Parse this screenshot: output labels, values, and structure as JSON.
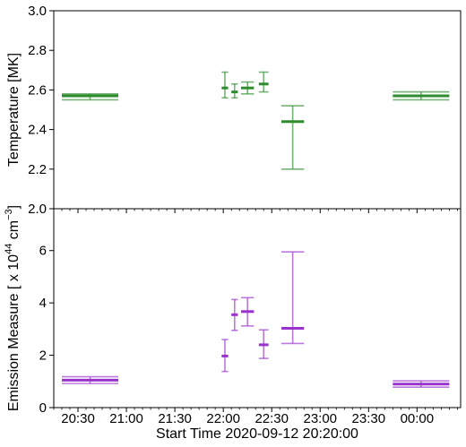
{
  "chart_data": [
    {
      "type": "errorbar",
      "panel": "top",
      "ylabel": "Temperature [MK]",
      "ylim": [
        2.0,
        3.0
      ],
      "yticks": [
        2.0,
        2.2,
        2.4,
        2.6,
        2.8,
        3.0
      ],
      "ytick_labels": [
        "2.0",
        "2.2",
        "2.4",
        "2.6",
        "2.8",
        "3.0"
      ],
      "color": "#2e8b2e",
      "points": [
        {
          "x_start": "20:20",
          "x_end": "20:55",
          "y": 2.57,
          "y_low": 2.55,
          "y_high": 2.58
        },
        {
          "x_start": "21:59",
          "x_end": "22:03",
          "y": 2.61,
          "y_low": 2.56,
          "y_high": 2.69
        },
        {
          "x_start": "22:05",
          "x_end": "22:09",
          "y": 2.59,
          "y_low": 2.56,
          "y_high": 2.63
        },
        {
          "x_start": "22:11",
          "x_end": "22:19",
          "y": 2.61,
          "y_low": 2.58,
          "y_high": 2.64
        },
        {
          "x_start": "22:22",
          "x_end": "22:28",
          "y": 2.63,
          "y_low": 2.59,
          "y_high": 2.69
        },
        {
          "x_start": "22:36",
          "x_end": "22:50",
          "y": 2.44,
          "y_low": 2.2,
          "y_high": 2.52
        },
        {
          "x_start": "23:45",
          "x_end": "00:20",
          "y": 2.57,
          "y_low": 2.55,
          "y_high": 2.59
        }
      ]
    },
    {
      "type": "errorbar",
      "panel": "bottom",
      "ylabel": "Emission Measure [ x 10",
      "ylabel_sup1": "44",
      "ylabel_mid": " cm",
      "ylabel_sup2": "−3",
      "ylabel_end": "]",
      "ylim": [
        0,
        7.6
      ],
      "yticks": [
        0,
        2,
        4,
        6
      ],
      "ytick_labels": [
        "0",
        "2",
        "4",
        "6"
      ],
      "color": "#9932cc",
      "points": [
        {
          "x_start": "20:20",
          "x_end": "20:55",
          "y": 1.05,
          "y_low": 0.92,
          "y_high": 1.18
        },
        {
          "x_start": "21:59",
          "x_end": "22:03",
          "y": 1.97,
          "y_low": 1.38,
          "y_high": 2.6
        },
        {
          "x_start": "22:05",
          "x_end": "22:09",
          "y": 3.55,
          "y_low": 2.95,
          "y_high": 4.13
        },
        {
          "x_start": "22:11",
          "x_end": "22:19",
          "y": 3.67,
          "y_low": 3.12,
          "y_high": 4.2
        },
        {
          "x_start": "22:22",
          "x_end": "22:28",
          "y": 2.4,
          "y_low": 1.88,
          "y_high": 2.97
        },
        {
          "x_start": "22:36",
          "x_end": "22:50",
          "y": 3.03,
          "y_low": 2.45,
          "y_high": 5.95
        },
        {
          "x_start": "23:45",
          "x_end": "00:20",
          "y": 0.9,
          "y_low": 0.78,
          "y_high": 1.02
        }
      ]
    }
  ],
  "xaxis": {
    "label": "Start Time 2020-09-12 20:20:00",
    "range": [
      "20:15",
      "00:27"
    ],
    "ticks": [
      "20:30",
      "21:00",
      "21:30",
      "22:00",
      "22:30",
      "23:00",
      "23:30",
      "00:00"
    ]
  }
}
